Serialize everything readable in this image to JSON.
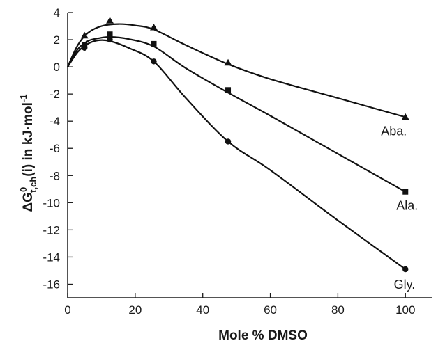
{
  "chart_data": {
    "type": "scatter",
    "title": "",
    "xlabel": "Mole % DMSO",
    "ylabel_parts": {
      "main": "ΔG",
      "sup": "0",
      "sub": "t,ch",
      "rest": "(i) in kJ·mol",
      "exp": "-1"
    },
    "xlim": [
      0,
      108
    ],
    "ylim": [
      -17,
      4
    ],
    "x_ticks": [
      0,
      20,
      40,
      60,
      80,
      100
    ],
    "y_ticks": [
      4,
      2,
      0,
      -2,
      -4,
      -6,
      -8,
      -10,
      -12,
      -14,
      -16
    ],
    "grid": false,
    "series": [
      {
        "name": "Aba.",
        "marker": "triangle",
        "x": [
          0,
          5,
          12.5,
          25.5,
          47.5,
          100
        ],
        "y": [
          0,
          2.3,
          3.4,
          2.9,
          0.3,
          -3.7
        ],
        "curve": [
          [
            0,
            0
          ],
          [
            3,
            1.6
          ],
          [
            6,
            2.5
          ],
          [
            10,
            3.0
          ],
          [
            15,
            3.15
          ],
          [
            20,
            3.05
          ],
          [
            25.5,
            2.75
          ],
          [
            35,
            1.6
          ],
          [
            47.5,
            0.2
          ],
          [
            60,
            -0.9
          ],
          [
            80,
            -2.3
          ],
          [
            100,
            -3.7
          ]
        ]
      },
      {
        "name": "Ala.",
        "marker": "square",
        "x": [
          0,
          5,
          12.5,
          25.5,
          47.5,
          100
        ],
        "y": [
          0,
          1.6,
          2.4,
          1.7,
          -1.7,
          -9.2
        ],
        "curve": [
          [
            0,
            0
          ],
          [
            3,
            1.3
          ],
          [
            6,
            1.9
          ],
          [
            9,
            2.1
          ],
          [
            12.5,
            2.2
          ],
          [
            18,
            2.05
          ],
          [
            25.5,
            1.5
          ],
          [
            35,
            -0.1
          ],
          [
            47.5,
            -1.9
          ],
          [
            60,
            -3.6
          ],
          [
            80,
            -6.4
          ],
          [
            100,
            -9.2
          ]
        ]
      },
      {
        "name": "Gly.",
        "marker": "circle",
        "x": [
          0,
          5,
          12.5,
          25.5,
          47.5,
          100
        ],
        "y": [
          0,
          1.4,
          2.0,
          0.4,
          -5.5,
          -14.9
        ],
        "curve": [
          [
            0,
            0
          ],
          [
            3,
            1.1
          ],
          [
            6,
            1.7
          ],
          [
            9,
            1.95
          ],
          [
            12.5,
            1.9
          ],
          [
            18,
            1.4
          ],
          [
            25.5,
            0.4
          ],
          [
            35,
            -2.3
          ],
          [
            47.5,
            -5.5
          ],
          [
            60,
            -7.6
          ],
          [
            80,
            -11.3
          ],
          [
            100,
            -14.9
          ]
        ]
      }
    ]
  }
}
